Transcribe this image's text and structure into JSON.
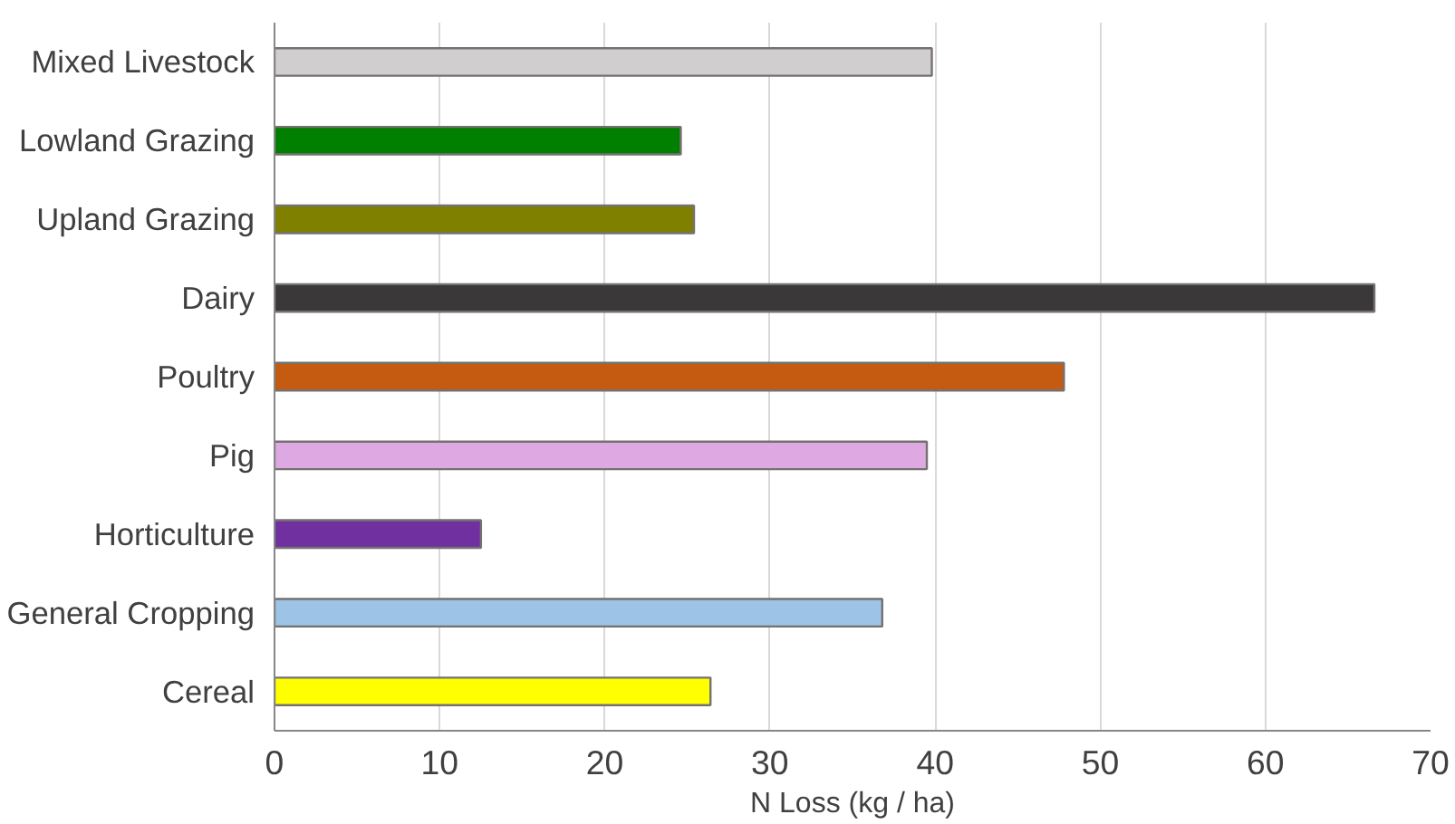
{
  "chart_data": {
    "type": "bar",
    "orientation": "horizontal",
    "xlabel": "N Loss (kg / ha)",
    "categories": [
      "Mixed Livestock",
      "Lowland Grazing",
      "Upland Grazing",
      "Dairy",
      "Poultry",
      "Pig",
      "Horticulture",
      "General Cropping",
      "Cereal"
    ],
    "values": [
      39.8,
      24.6,
      25.4,
      66.6,
      47.8,
      39.5,
      12.5,
      36.8,
      26.4
    ],
    "colors": [
      "#d0cece",
      "#007f00",
      "#7f7f00",
      "#3a3838",
      "#c55a11",
      "#dea9e3",
      "#7030a0",
      "#9dc3e6",
      "#ffff00"
    ],
    "xlim": [
      0,
      70
    ],
    "xticks": [
      0,
      10,
      20,
      30,
      40,
      50,
      60,
      70
    ],
    "grid": "x"
  }
}
